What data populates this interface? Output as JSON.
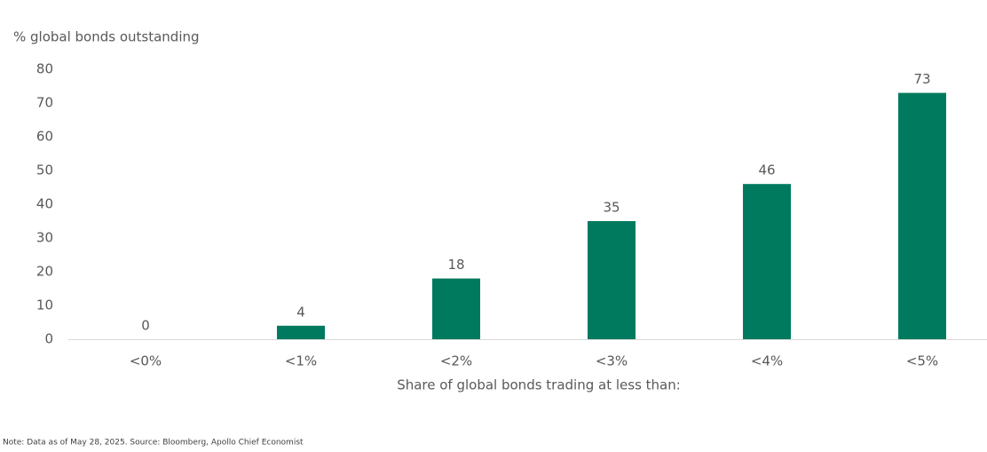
{
  "chart_data": {
    "type": "bar",
    "y_axis_label": "% global bonds outstanding",
    "x_axis_label": "Share of global bonds trading at less than:",
    "note": "Note: Data as of May 28, 2025. Source: Bloomberg, Apollo Chief Economist",
    "categories": [
      "<0%",
      "<1%",
      "<2%",
      "<3%",
      "<4%",
      "<5%"
    ],
    "values": [
      0,
      4,
      18,
      35,
      46,
      73
    ],
    "color": "#007a5e",
    "ylim": [
      0,
      80
    ],
    "yticks": [
      0,
      10,
      20,
      30,
      40,
      50,
      60,
      70,
      80
    ],
    "grid": false
  }
}
